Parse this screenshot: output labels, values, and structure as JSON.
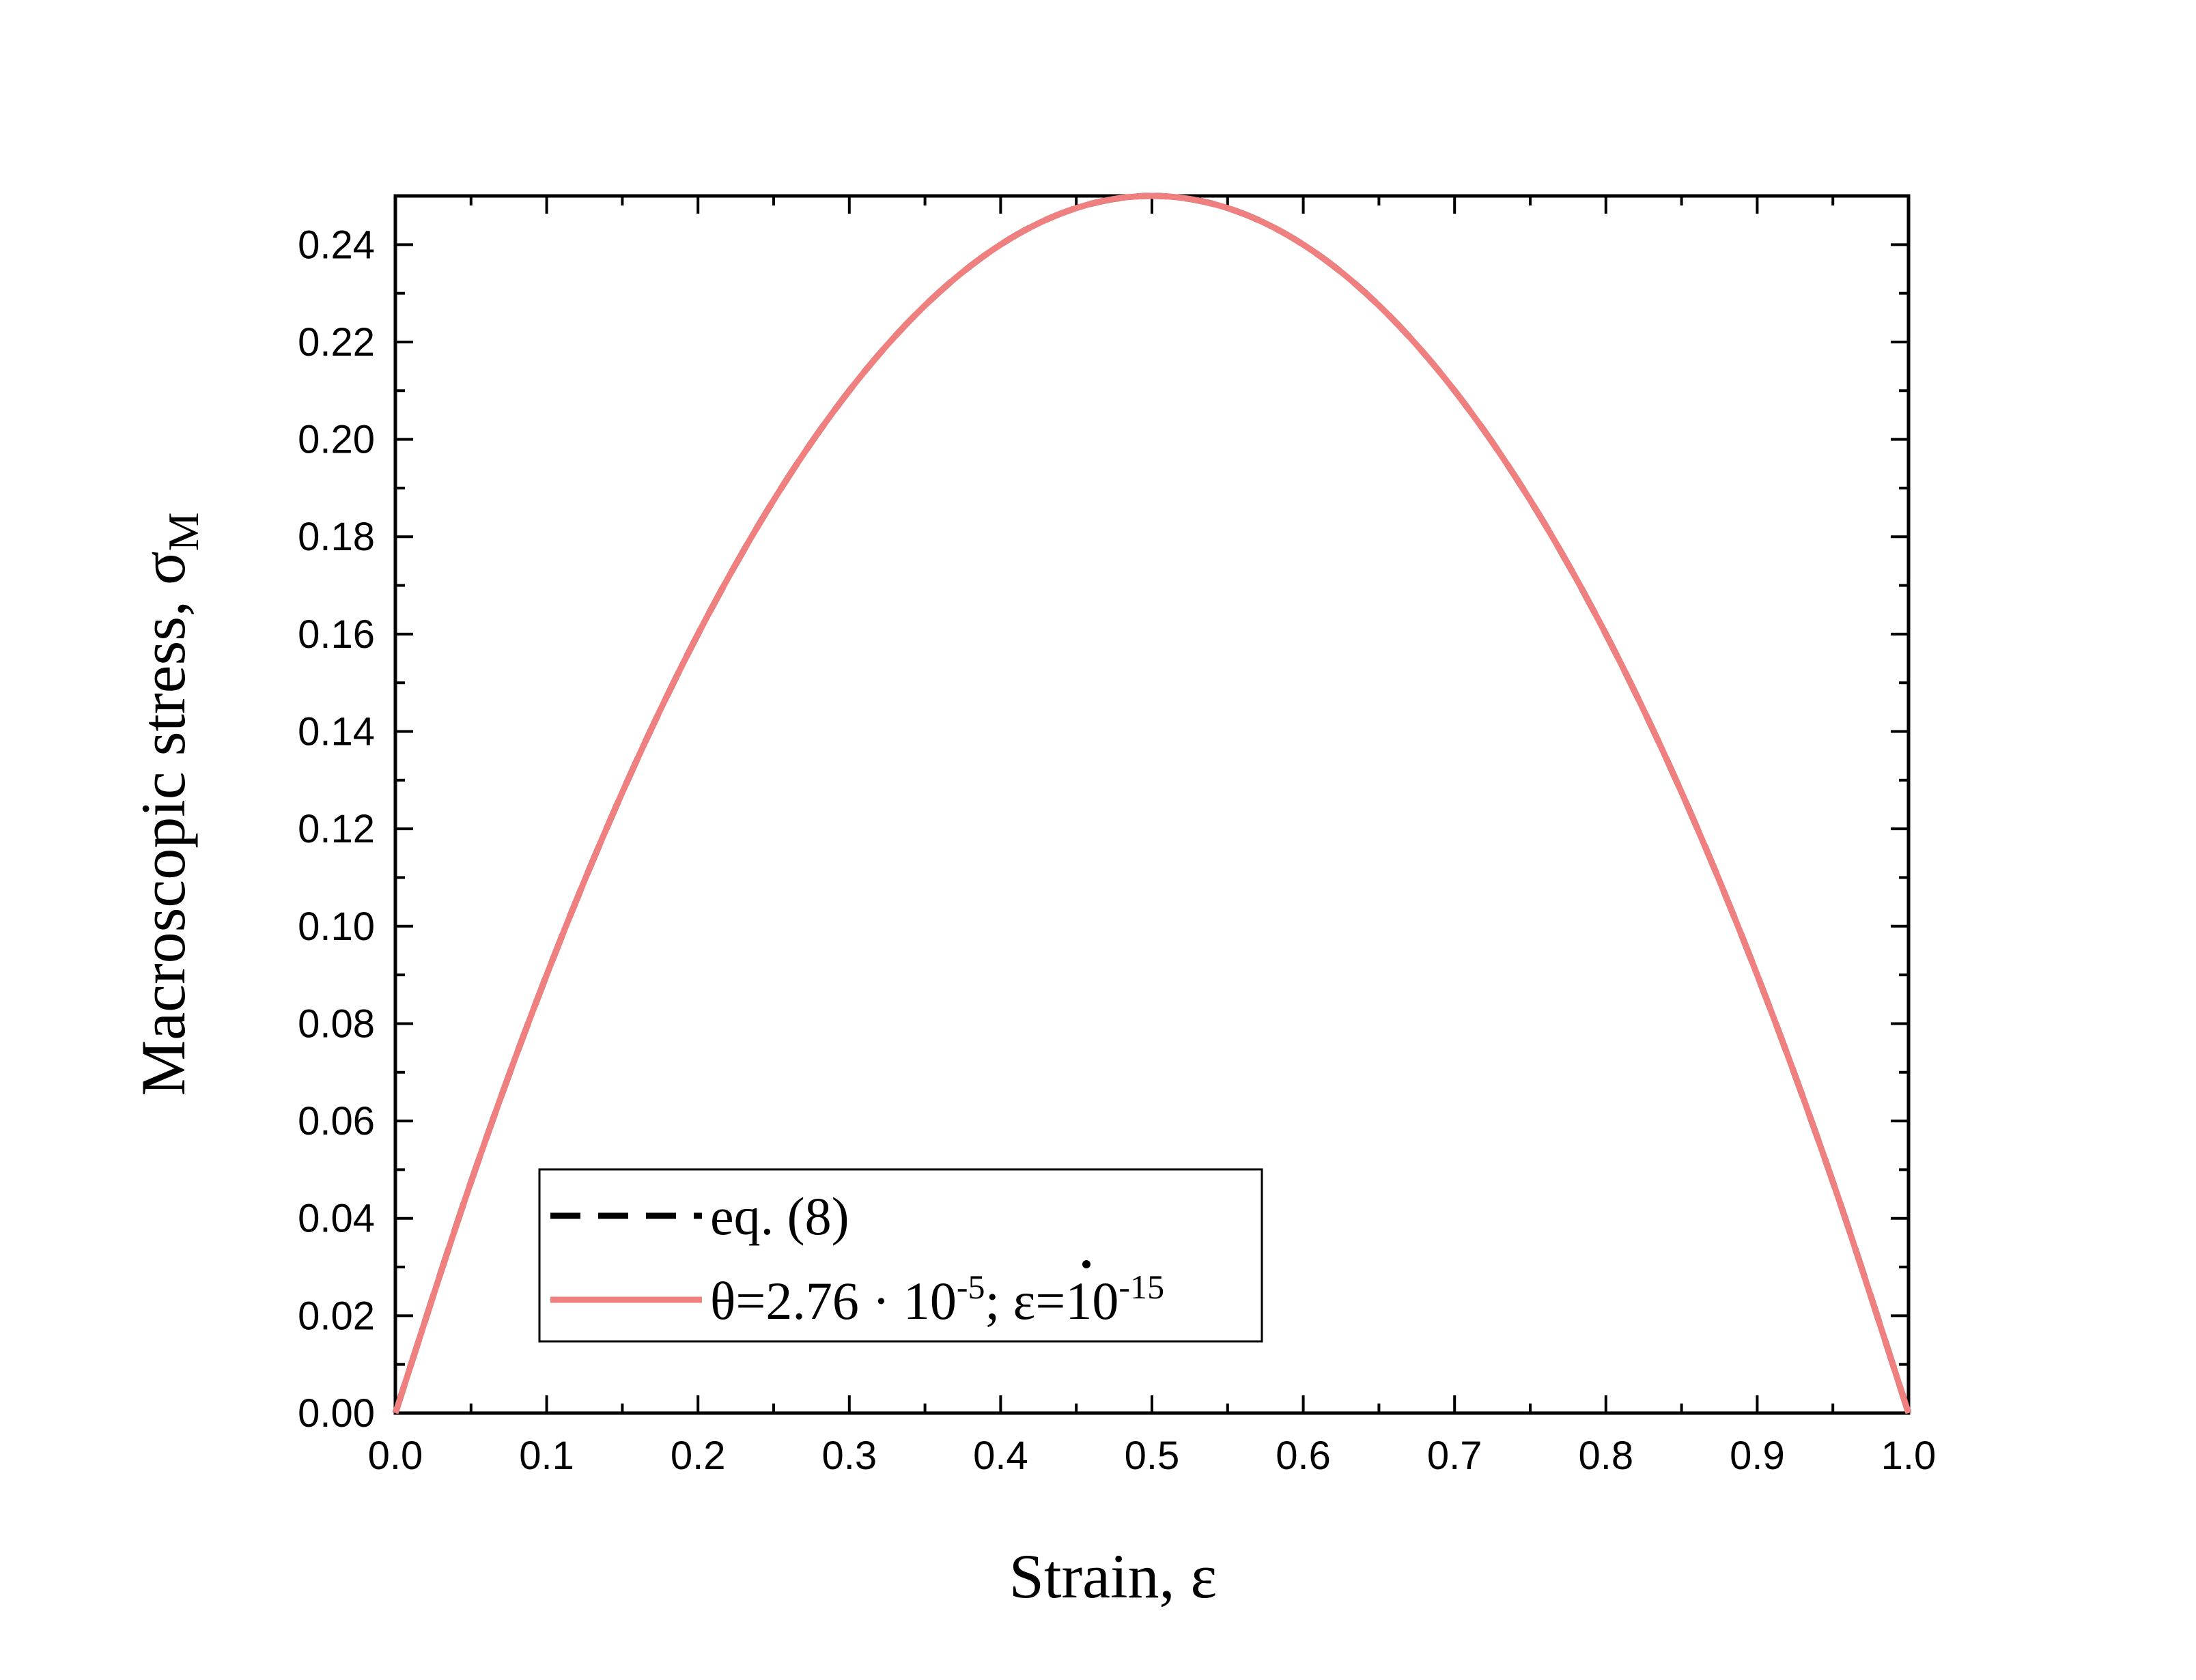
{
  "chart_data": {
    "type": "line",
    "title": "",
    "xlabel": "Strain, ε",
    "ylabel": "Macroscopic stress, σ",
    "ylabel_subscript": "M",
    "xlim": [
      0.0,
      1.0
    ],
    "ylim": [
      0.0,
      0.25
    ],
    "xticks": [
      0.0,
      0.1,
      0.2,
      0.3,
      0.4,
      0.5,
      0.6,
      0.7,
      0.8,
      0.9,
      1.0
    ],
    "xtick_labels": [
      "0.0",
      "0.1",
      "0.2",
      "0.3",
      "0.4",
      "0.5",
      "0.6",
      "0.7",
      "0.8",
      "0.9",
      "1.0"
    ],
    "yticks": [
      0.0,
      0.02,
      0.04,
      0.06,
      0.08,
      0.1,
      0.12,
      0.14,
      0.16,
      0.18,
      0.2,
      0.22,
      0.24
    ],
    "ytick_labels": [
      "0.00",
      "0.02",
      "0.04",
      "0.06",
      "0.08",
      "0.10",
      "0.12",
      "0.14",
      "0.16",
      "0.18",
      "0.20",
      "0.22",
      "0.24"
    ],
    "grid": false,
    "legend_position": "bottom-left",
    "x": [
      0.0,
      0.05,
      0.1,
      0.15,
      0.2,
      0.25,
      0.3,
      0.35,
      0.4,
      0.45,
      0.5,
      0.55,
      0.6,
      0.65,
      0.7,
      0.75,
      0.8,
      0.85,
      0.9,
      0.95,
      1.0
    ],
    "series": [
      {
        "name": "eq. (8)",
        "style": "dashed",
        "color": "#000000",
        "values": [
          0.0,
          0.0475,
          0.09,
          0.1275,
          0.16,
          0.1875,
          0.21,
          0.2275,
          0.24,
          0.2475,
          0.25,
          0.2475,
          0.24,
          0.2275,
          0.21,
          0.1875,
          0.16,
          0.1275,
          0.09,
          0.0475,
          0.0
        ]
      },
      {
        "name": "θ=2.76 · 10-5; ε=10-15",
        "style": "solid",
        "color": "#f08080",
        "values": [
          0.0,
          0.0475,
          0.09,
          0.1275,
          0.16,
          0.1875,
          0.21,
          0.2275,
          0.24,
          0.2475,
          0.25,
          0.2475,
          0.24,
          0.2275,
          0.21,
          0.1875,
          0.16,
          0.1275,
          0.09,
          0.0475,
          0.0
        ]
      }
    ],
    "legend": {
      "entry1": "eq. (8)",
      "entry2_theta": "θ=2.76 · 10",
      "entry2_theta_exp": "-5",
      "entry2_sep": "; ",
      "entry2_eps": "ε",
      "entry2_eq": "=10",
      "entry2_eps_exp": "-15"
    }
  }
}
